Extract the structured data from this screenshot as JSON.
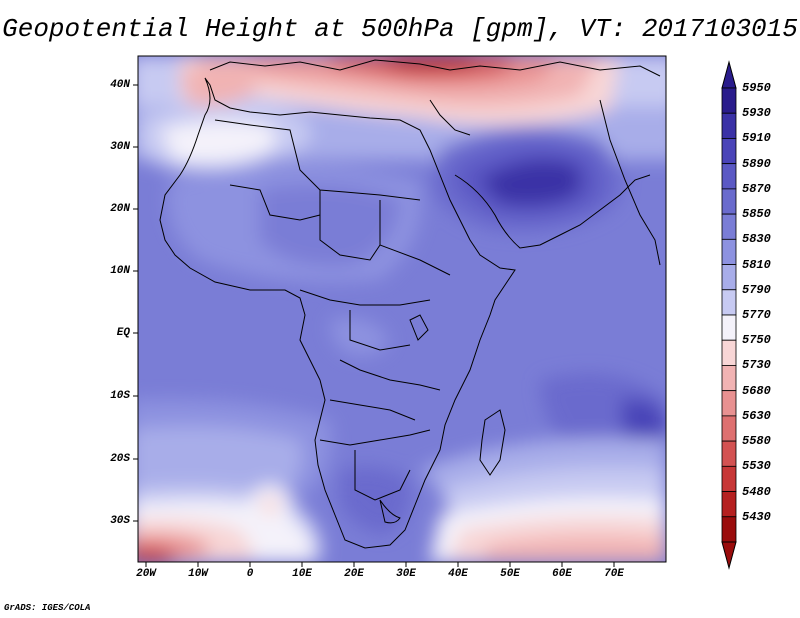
{
  "title": "Geopotential Height at 500hPa [gpm], VT: 2017103015",
  "credit": "GrADS: IGES/COLA",
  "latitude_labels": [
    "40N",
    "30N",
    "20N",
    "10N",
    "EQ",
    "10S",
    "20S",
    "30S"
  ],
  "longitude_labels": [
    "20W",
    "10W",
    "0",
    "10E",
    "20E",
    "30E",
    "40E",
    "50E",
    "60E",
    "70E"
  ],
  "colorbar": {
    "levels": [
      "5950",
      "5930",
      "5910",
      "5890",
      "5870",
      "5850",
      "5830",
      "5810",
      "5790",
      "5770",
      "5750",
      "5730",
      "5680",
      "5630",
      "5580",
      "5530",
      "5480",
      "5430"
    ],
    "colors": [
      "#2a1c8c",
      "#3a31a6",
      "#4a44b8",
      "#5b59c4",
      "#6a6bcd",
      "#7a7dd6",
      "#8d92e0",
      "#a8ade9",
      "#c7caf2",
      "#f4f2fa",
      "#f8d6d6",
      "#f1b3b3",
      "#e89191",
      "#de7070",
      "#d35252",
      "#c73737",
      "#b52020",
      "#9a0c0c"
    ]
  }
}
